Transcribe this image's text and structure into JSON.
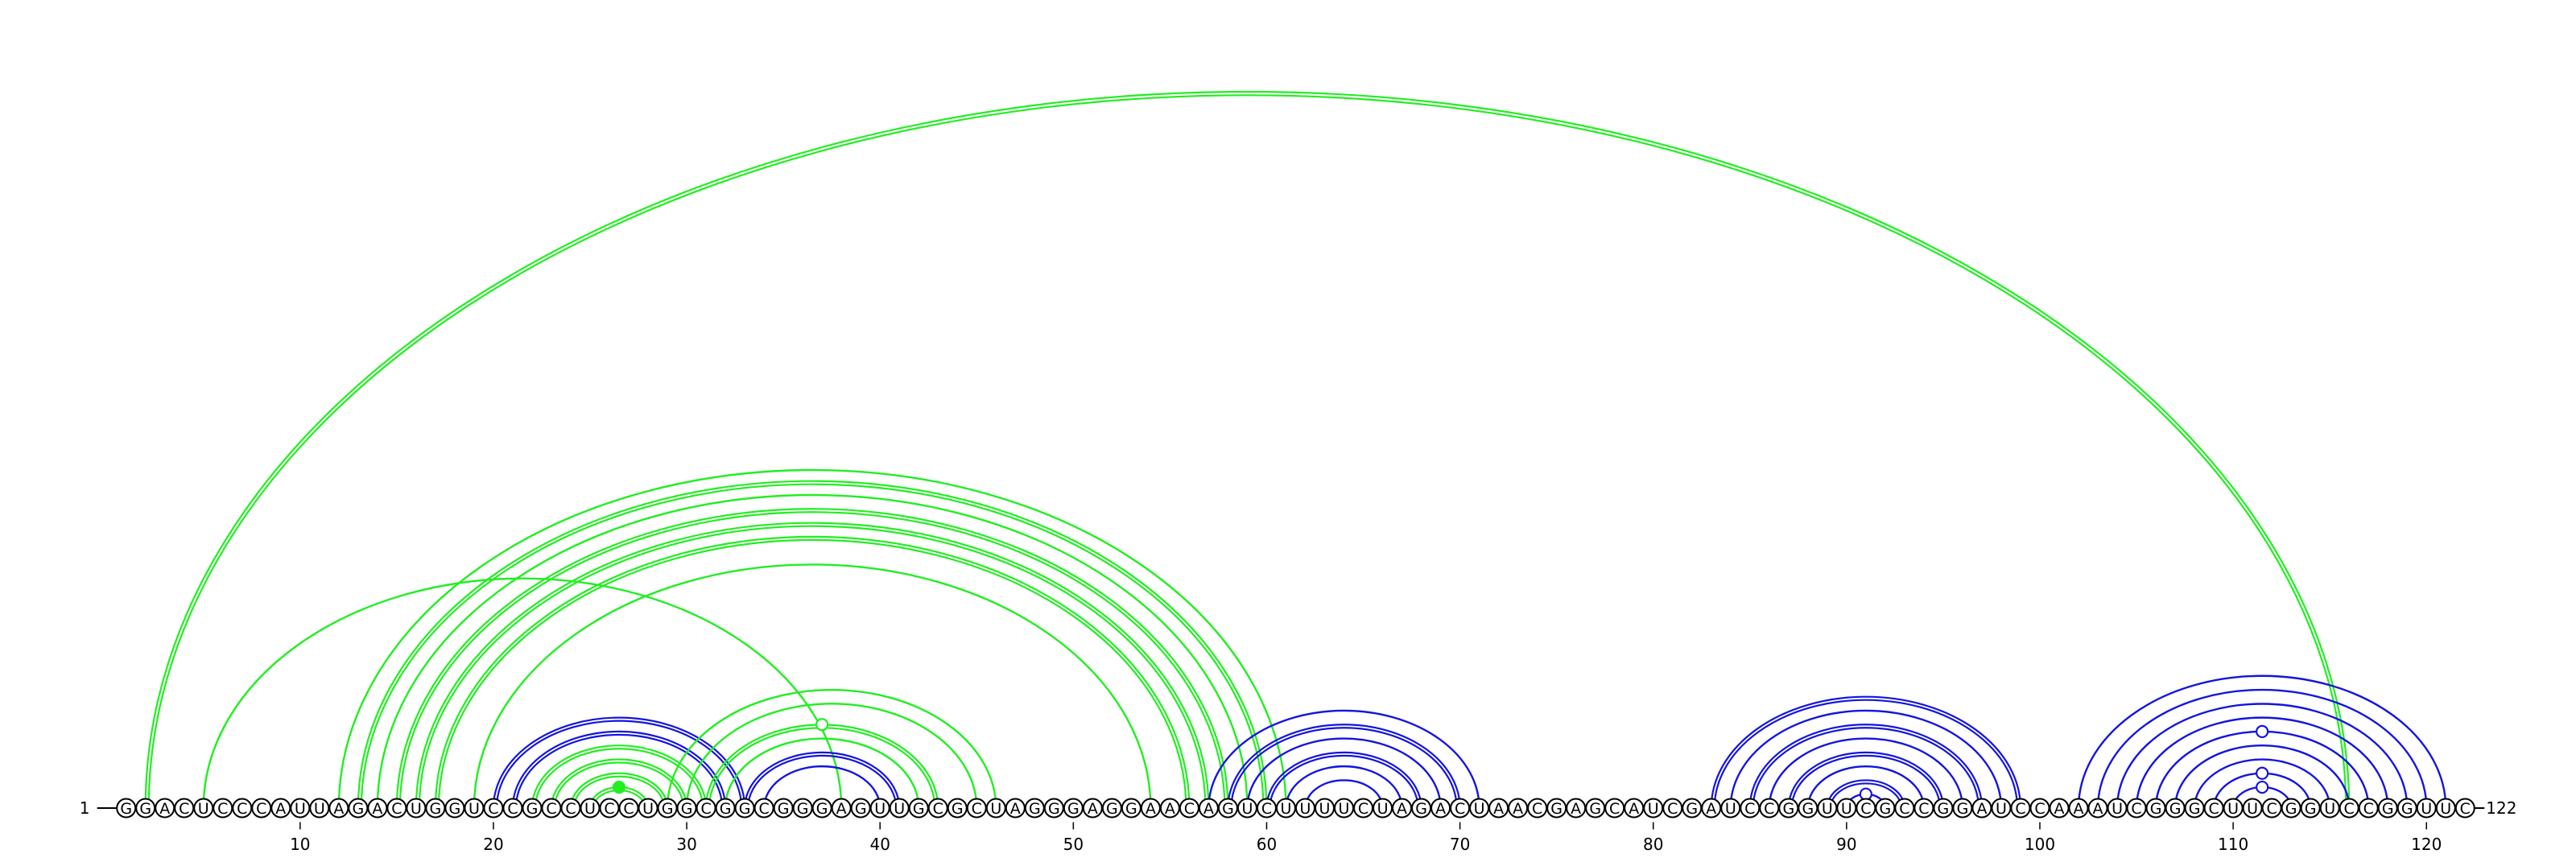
{
  "sequence": "GGACUCCCAUUAGACUGGUCCGCCUCCUGGCGGCGGGAGUUGCGCUAGGGAGGAACAGUCUUUUCUAGACUAACGAGCAUCGAUCCGGUUCGCCGGAUCCAAAUCGGGCUUCGGUCCGGUUC",
  "start_label": "1",
  "end_label": "122",
  "tick_labels": [
    "10",
    "20",
    "30",
    "40",
    "50",
    "60",
    "70",
    "80",
    "90",
    "100",
    "110",
    "120"
  ],
  "colors": {
    "green": "#22ee22",
    "blue": "#1414e0",
    "ink": "#000000"
  },
  "arcs": [
    {
      "i": 2,
      "j": 116,
      "color": "green",
      "strands": 2
    },
    {
      "i": 5,
      "j": 38,
      "color": "green",
      "strands": 1
    },
    {
      "i": 12,
      "j": 61,
      "color": "green",
      "strands": 1
    },
    {
      "i": 13,
      "j": 60,
      "color": "green",
      "strands": 2
    },
    {
      "i": 14,
      "j": 59,
      "color": "green",
      "strands": 1
    },
    {
      "i": 15,
      "j": 58,
      "color": "green",
      "strands": 2
    },
    {
      "i": 16,
      "j": 57,
      "color": "green",
      "strands": 2
    },
    {
      "i": 17,
      "j": 56,
      "color": "green",
      "strands": 2
    },
    {
      "i": 19,
      "j": 54,
      "color": "green",
      "strands": 1
    },
    {
      "i": 20,
      "j": 33,
      "color": "blue",
      "strands": 2
    },
    {
      "i": 21,
      "j": 32,
      "color": "blue",
      "strands": 2
    },
    {
      "i": 22,
      "j": 31,
      "color": "green",
      "strands": 2
    },
    {
      "i": 23,
      "j": 30,
      "color": "green",
      "strands": 2
    },
    {
      "i": 24,
      "j": 29,
      "color": "green",
      "strands": 2
    },
    {
      "i": 25,
      "j": 28,
      "color": "green",
      "strands": 2
    },
    {
      "i": 29,
      "j": 46,
      "color": "green",
      "strands": 1
    },
    {
      "i": 30,
      "j": 45,
      "color": "green",
      "strands": 1
    },
    {
      "i": 31,
      "j": 43,
      "color": "green",
      "strands": 2
    },
    {
      "i": 32,
      "j": 42,
      "color": "green",
      "strands": 1
    },
    {
      "i": 33,
      "j": 41,
      "color": "blue",
      "strands": 2
    },
    {
      "i": 34,
      "j": 40,
      "color": "blue",
      "strands": 1
    },
    {
      "i": 57,
      "j": 71,
      "color": "blue",
      "strands": 1
    },
    {
      "i": 58,
      "j": 70,
      "color": "blue",
      "strands": 2
    },
    {
      "i": 59,
      "j": 69,
      "color": "blue",
      "strands": 1
    },
    {
      "i": 60,
      "j": 68,
      "color": "blue",
      "strands": 2
    },
    {
      "i": 61,
      "j": 67,
      "color": "blue",
      "strands": 1
    },
    {
      "i": 62,
      "j": 66,
      "color": "blue",
      "strands": 1
    },
    {
      "i": 83,
      "j": 99,
      "color": "blue",
      "strands": 2
    },
    {
      "i": 84,
      "j": 98,
      "color": "blue",
      "strands": 1
    },
    {
      "i": 85,
      "j": 97,
      "color": "blue",
      "strands": 2
    },
    {
      "i": 86,
      "j": 96,
      "color": "blue",
      "strands": 1
    },
    {
      "i": 87,
      "j": 95,
      "color": "blue",
      "strands": 2
    },
    {
      "i": 88,
      "j": 94,
      "color": "blue",
      "strands": 1
    },
    {
      "i": 89,
      "j": 93,
      "color": "blue",
      "strands": 2
    },
    {
      "i": 90,
      "j": 92,
      "color": "blue",
      "strands": 1
    },
    {
      "i": 102,
      "j": 121,
      "color": "blue",
      "strands": 1
    },
    {
      "i": 103,
      "j": 120,
      "color": "blue",
      "strands": 1
    },
    {
      "i": 104,
      "j": 119,
      "color": "blue",
      "strands": 1
    },
    {
      "i": 105,
      "j": 118,
      "color": "blue",
      "strands": 1
    },
    {
      "i": 106,
      "j": 117,
      "color": "blue",
      "strands": 1
    },
    {
      "i": 107,
      "j": 116,
      "color": "blue",
      "strands": 1
    },
    {
      "i": 108,
      "j": 115,
      "color": "blue",
      "strands": 1
    },
    {
      "i": 109,
      "j": 114,
      "color": "blue",
      "strands": 1
    },
    {
      "i": 110,
      "j": 113,
      "color": "blue",
      "strands": 1
    }
  ],
  "markers": [
    {
      "over": [
        31,
        43
      ],
      "color": "green",
      "filled": false
    },
    {
      "over": [
        25,
        28
      ],
      "color": "green",
      "filled": true
    },
    {
      "over": [
        90,
        92
      ],
      "color": "blue",
      "filled": false
    },
    {
      "over": [
        106,
        117
      ],
      "color": "blue",
      "filled": false
    },
    {
      "over": [
        109,
        114
      ],
      "color": "blue",
      "filled": false
    },
    {
      "over": [
        110,
        113
      ],
      "color": "blue",
      "filled": false
    }
  ]
}
